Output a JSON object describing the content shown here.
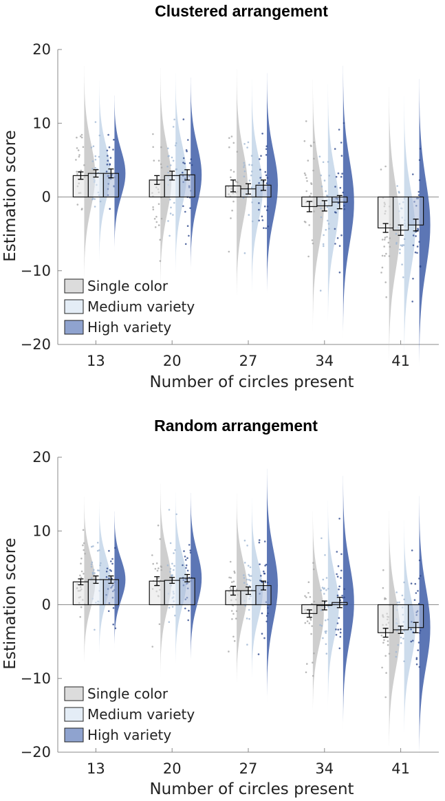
{
  "colors": {
    "single": "#c9c9c9",
    "medium": "#c8d8ea",
    "high": "#4a67ad",
    "axis": "#888888"
  },
  "chart_data": [
    {
      "type": "bar",
      "title": "Clustered arrangement",
      "xlabel": "Number of circles present",
      "ylabel": "Estimation score",
      "categories": [
        "13",
        "20",
        "27",
        "34",
        "41"
      ],
      "ylim": [
        -20,
        20
      ],
      "yticks": [
        -20,
        -10,
        0,
        10,
        20
      ],
      "grid": false,
      "legend_position": "bottom-left",
      "series": [
        {
          "name": "Single color",
          "values": [
            2.9,
            2.3,
            1.5,
            -1.3,
            -4.2
          ],
          "errors": [
            0.5,
            0.6,
            0.8,
            0.7,
            0.6
          ],
          "spread": [
            4.5,
            4.6,
            4.8,
            5.2,
            5.8
          ]
        },
        {
          "name": "Medium variety",
          "values": [
            3.2,
            2.9,
            1.1,
            -1.2,
            -4.5
          ],
          "errors": [
            0.5,
            0.6,
            0.7,
            0.7,
            0.7
          ],
          "spread": [
            3.8,
            4.2,
            4.5,
            5.0,
            5.5
          ]
        },
        {
          "name": "High variety",
          "values": [
            3.2,
            3.0,
            1.6,
            -0.7,
            -3.8
          ],
          "errors": [
            0.6,
            0.7,
            0.7,
            0.9,
            0.8
          ],
          "spread": [
            3.2,
            4.0,
            4.6,
            5.6,
            6.0
          ]
        }
      ]
    },
    {
      "type": "bar",
      "title": "Random arrangement",
      "xlabel": "Number of circles present",
      "ylabel": "Estimation score",
      "categories": [
        "13",
        "20",
        "27",
        "34",
        "41"
      ],
      "ylim": [
        -20,
        20
      ],
      "yticks": [
        -20,
        -10,
        0,
        10,
        20
      ],
      "grid": false,
      "legend_position": "bottom-left",
      "series": [
        {
          "name": "Single color",
          "values": [
            3.1,
            3.2,
            1.9,
            -1.2,
            -3.8
          ],
          "errors": [
            0.4,
            0.6,
            0.6,
            0.5,
            0.6
          ],
          "spread": [
            3.5,
            4.0,
            4.0,
            4.2,
            5.0
          ]
        },
        {
          "name": "Medium variety",
          "values": [
            3.4,
            3.3,
            1.9,
            -0.1,
            -3.4
          ],
          "errors": [
            0.5,
            0.4,
            0.5,
            0.6,
            0.5
          ],
          "spread": [
            3.2,
            3.6,
            3.8,
            4.3,
            4.5
          ]
        },
        {
          "name": "High variety",
          "values": [
            3.4,
            3.6,
            2.6,
            0.3,
            -3.1
          ],
          "errors": [
            0.5,
            0.5,
            0.6,
            0.7,
            0.7
          ],
          "spread": [
            2.8,
            3.5,
            4.8,
            5.2,
            5.4
          ]
        }
      ]
    }
  ]
}
